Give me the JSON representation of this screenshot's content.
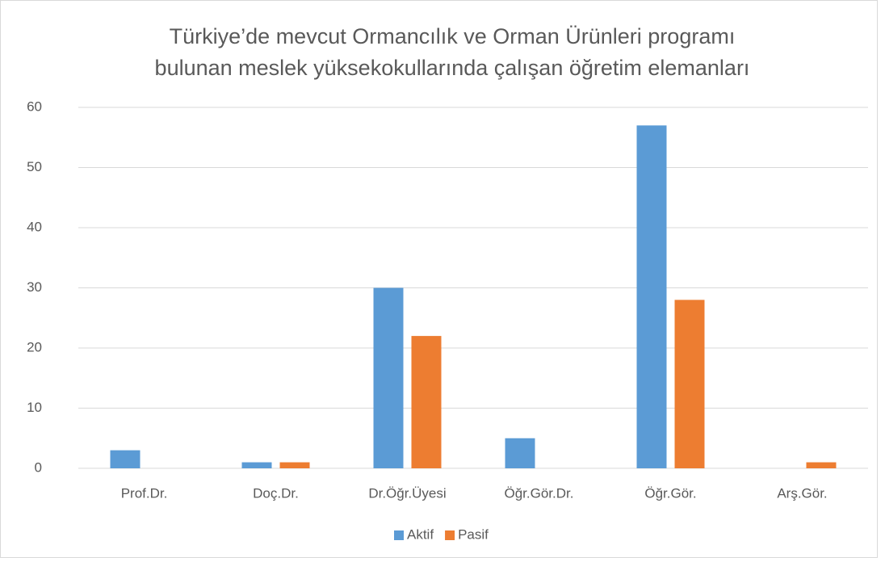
{
  "chart_data": {
    "type": "bar",
    "title": [
      "Türkiye’de mevcut Ormancılık ve Orman Ürünleri programı",
      "bulunan meslek yüksekokullarında çalışan öğretim elemanları"
    ],
    "categories": [
      "Prof.Dr.",
      "Doç.Dr.",
      "Dr.Öğr.Üyesi",
      "Öğr.Gör.Dr.",
      "Öğr.Gör.",
      "Arş.Gör."
    ],
    "series": [
      {
        "name": "Aktif",
        "color": "#5b9bd5",
        "values": [
          3,
          1,
          30,
          5,
          57,
          0
        ]
      },
      {
        "name": "Pasif",
        "color": "#ed7d31",
        "values": [
          0,
          1,
          22,
          0,
          28,
          1
        ]
      }
    ],
    "ylim": [
      0,
      60
    ],
    "yticks": [
      0,
      10,
      20,
      30,
      40,
      50,
      60
    ],
    "grid": true,
    "legend": "bottom"
  }
}
